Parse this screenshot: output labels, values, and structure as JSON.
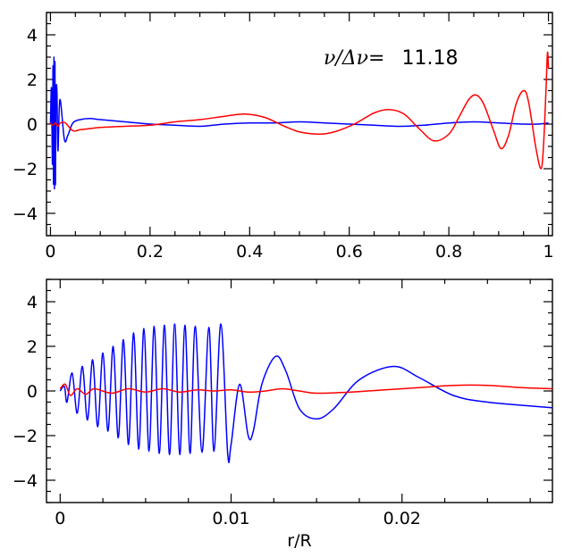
{
  "chart_data": [
    {
      "type": "line",
      "title": "",
      "xlabel": "",
      "ylabel": "",
      "xlim": [
        -0.008,
        1.008
      ],
      "ylim": [
        -5,
        5
      ],
      "xticks": [
        0,
        0.2,
        0.4,
        0.6,
        0.8,
        1
      ],
      "xtick_labels": [
        "0",
        "0.2",
        "0.4",
        "0.6",
        "0.8",
        "1"
      ],
      "yticks": [
        -4,
        -2,
        0,
        2,
        4
      ],
      "ytick_labels": [
        "−4",
        "−2",
        "0",
        "2",
        "4"
      ],
      "grid": false,
      "annotation": {
        "symbol": "ν/Δν=",
        "value": "11.18",
        "position": "top-right"
      },
      "series": [
        {
          "color": "#0000ff",
          "points": [
            [
              0.0,
              0.0
            ],
            [
              0.002,
              1.6
            ],
            [
              0.004,
              -1.8
            ],
            [
              0.005,
              2.6
            ],
            [
              0.006,
              -2.7
            ],
            [
              0.007,
              3.0
            ],
            [
              0.008,
              -2.9
            ],
            [
              0.009,
              2.8
            ],
            [
              0.01,
              -2.7
            ],
            [
              0.011,
              1.2
            ],
            [
              0.013,
              1.5
            ],
            [
              0.015,
              -1.2
            ],
            [
              0.019,
              1.1
            ],
            [
              0.028,
              -0.7
            ],
            [
              0.035,
              -0.5
            ],
            [
              0.045,
              0.05
            ],
            [
              0.06,
              0.2
            ],
            [
              0.08,
              0.25
            ],
            [
              0.1,
              0.2
            ],
            [
              0.15,
              0.1
            ],
            [
              0.2,
              0.0
            ],
            [
              0.25,
              -0.05
            ],
            [
              0.3,
              -0.1
            ],
            [
              0.35,
              0.0
            ],
            [
              0.4,
              0.05
            ],
            [
              0.45,
              0.05
            ],
            [
              0.5,
              0.1
            ],
            [
              0.55,
              0.05
            ],
            [
              0.6,
              0.0
            ],
            [
              0.65,
              -0.05
            ],
            [
              0.7,
              -0.1
            ],
            [
              0.75,
              -0.05
            ],
            [
              0.8,
              0.05
            ],
            [
              0.85,
              0.1
            ],
            [
              0.9,
              0.05
            ],
            [
              0.95,
              0.0
            ],
            [
              0.98,
              0.0
            ],
            [
              1.0,
              0.05
            ]
          ]
        },
        {
          "color": "#ff0000",
          "points": [
            [
              0.0,
              0.05
            ],
            [
              0.005,
              -0.05
            ],
            [
              0.01,
              0.05
            ],
            [
              0.015,
              -0.1
            ],
            [
              0.02,
              0.05
            ],
            [
              0.03,
              0.05
            ],
            [
              0.045,
              -0.3
            ],
            [
              0.06,
              -0.25
            ],
            [
              0.08,
              -0.2
            ],
            [
              0.1,
              -0.15
            ],
            [
              0.15,
              -0.1
            ],
            [
              0.2,
              -0.05
            ],
            [
              0.25,
              0.1
            ],
            [
              0.3,
              0.2
            ],
            [
              0.35,
              0.35
            ],
            [
              0.39,
              0.45
            ],
            [
              0.43,
              0.3
            ],
            [
              0.47,
              -0.1
            ],
            [
              0.5,
              -0.35
            ],
            [
              0.54,
              -0.45
            ],
            [
              0.57,
              -0.35
            ],
            [
              0.61,
              0.0
            ],
            [
              0.65,
              0.5
            ],
            [
              0.68,
              0.65
            ],
            [
              0.71,
              0.45
            ],
            [
              0.74,
              -0.2
            ],
            [
              0.77,
              -0.75
            ],
            [
              0.8,
              -0.45
            ],
            [
              0.82,
              0.3
            ],
            [
              0.84,
              1.1
            ],
            [
              0.855,
              1.3
            ],
            [
              0.87,
              0.9
            ],
            [
              0.89,
              -0.3
            ],
            [
              0.905,
              -1.1
            ],
            [
              0.92,
              -0.5
            ],
            [
              0.935,
              0.9
            ],
            [
              0.95,
              1.5
            ],
            [
              0.96,
              1.0
            ],
            [
              0.975,
              -1.1
            ],
            [
              0.985,
              -2.0
            ],
            [
              0.99,
              -1.0
            ],
            [
              0.995,
              1.5
            ],
            [
              0.998,
              3.2
            ],
            [
              1.0,
              2.5
            ]
          ]
        }
      ]
    },
    {
      "type": "line",
      "title": "",
      "xlabel": "r/R",
      "ylabel": "",
      "xlim": [
        -0.0008,
        0.0288
      ],
      "ylim": [
        -5,
        5
      ],
      "xticks": [
        0,
        0.01,
        0.02
      ],
      "xtick_labels": [
        "0",
        "0.01",
        "0.02"
      ],
      "yticks": [
        -4,
        -2,
        0,
        2,
        4
      ],
      "ytick_labels": [
        "−4",
        "−2",
        "0",
        "2",
        "4"
      ],
      "grid": false,
      "series": [
        {
          "color": "#0000ff",
          "points": [
            [
              0.0,
              0.0
            ],
            [
              0.00025,
              0.2
            ],
            [
              0.0004,
              -0.5
            ],
            [
              0.0007,
              0.8
            ],
            [
              0.001,
              -1.0
            ],
            [
              0.0013,
              1.1
            ],
            [
              0.0016,
              -1.3
            ],
            [
              0.0019,
              1.4
            ],
            [
              0.0022,
              -1.6
            ],
            [
              0.0025,
              1.7
            ],
            [
              0.0028,
              -1.8
            ],
            [
              0.0031,
              2.0
            ],
            [
              0.0034,
              -2.1
            ],
            [
              0.0037,
              2.3
            ],
            [
              0.004,
              -2.4
            ],
            [
              0.0043,
              2.6
            ],
            [
              0.0046,
              -2.6
            ],
            [
              0.0049,
              2.8
            ],
            [
              0.0052,
              -2.7
            ],
            [
              0.0055,
              2.9
            ],
            [
              0.0058,
              -2.8
            ],
            [
              0.0061,
              2.95
            ],
            [
              0.0064,
              -2.85
            ],
            [
              0.0067,
              3.0
            ],
            [
              0.007,
              -2.85
            ],
            [
              0.0073,
              2.95
            ],
            [
              0.0076,
              -2.8
            ],
            [
              0.0079,
              2.9
            ],
            [
              0.0083,
              -2.75
            ],
            [
              0.0087,
              2.85
            ],
            [
              0.009,
              -2.7
            ],
            [
              0.0094,
              3.0
            ],
            [
              0.0098,
              -2.8
            ],
            [
              0.01,
              -2.4
            ],
            [
              0.0105,
              0.3
            ],
            [
              0.011,
              -2.0
            ],
            [
              0.0113,
              -1.8
            ],
            [
              0.0118,
              0.3
            ],
            [
              0.0126,
              1.55
            ],
            [
              0.0132,
              0.9
            ],
            [
              0.014,
              -0.8
            ],
            [
              0.015,
              -1.25
            ],
            [
              0.016,
              -0.8
            ],
            [
              0.0175,
              0.5
            ],
            [
              0.0195,
              1.1
            ],
            [
              0.021,
              0.6
            ],
            [
              0.023,
              -0.2
            ],
            [
              0.025,
              -0.5
            ],
            [
              0.0288,
              -0.75
            ]
          ]
        },
        {
          "color": "#ff0000",
          "points": [
            [
              0.0,
              0.1
            ],
            [
              0.0003,
              0.3
            ],
            [
              0.0006,
              -0.2
            ],
            [
              0.001,
              0.1
            ],
            [
              0.0015,
              -0.15
            ],
            [
              0.002,
              0.1
            ],
            [
              0.003,
              -0.1
            ],
            [
              0.004,
              0.1
            ],
            [
              0.005,
              -0.05
            ],
            [
              0.006,
              0.1
            ],
            [
              0.007,
              -0.05
            ],
            [
              0.008,
              0.05
            ],
            [
              0.009,
              0.0
            ],
            [
              0.01,
              0.05
            ],
            [
              0.011,
              -0.05
            ],
            [
              0.012,
              0.0
            ],
            [
              0.013,
              0.1
            ],
            [
              0.014,
              0.0
            ],
            [
              0.015,
              -0.1
            ],
            [
              0.017,
              -0.05
            ],
            [
              0.019,
              0.05
            ],
            [
              0.021,
              0.15
            ],
            [
              0.023,
              0.25
            ],
            [
              0.025,
              0.25
            ],
            [
              0.027,
              0.15
            ],
            [
              0.0288,
              0.1
            ]
          ]
        }
      ]
    }
  ]
}
